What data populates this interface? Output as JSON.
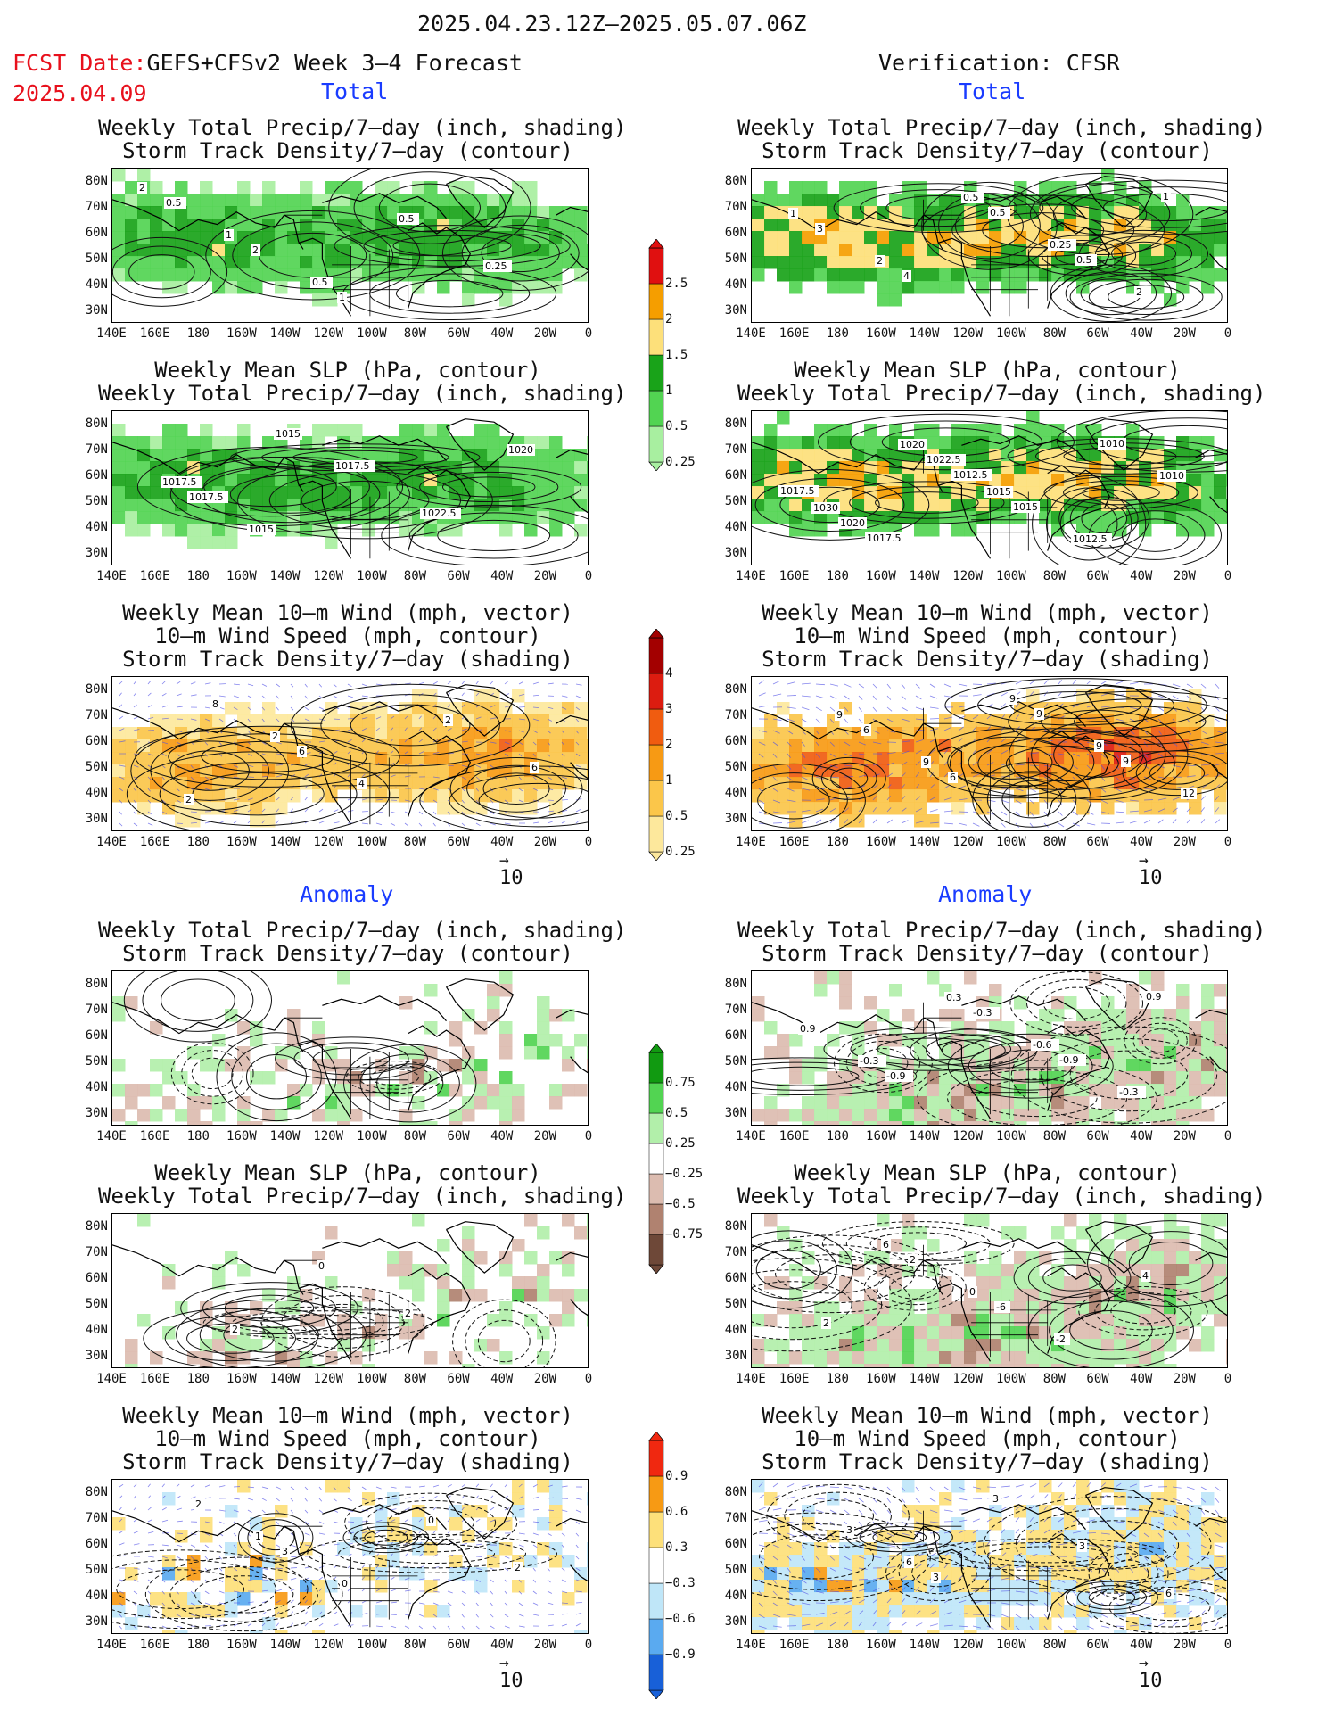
{
  "header": {
    "date_range": "2025.04.23.12Z–2025.05.07.06Z",
    "fcst_label": "FCST Date:",
    "fcst_model": "GEFS+CFSv2 Week 3–4 Forecast",
    "fcst_date": "2025.04.09",
    "verification": "Verification: CFSR"
  },
  "sections": {
    "total": "Total",
    "anomaly": "Anomaly"
  },
  "titles": {
    "precip_storm": [
      "Weekly Total Precip/7–day (inch, shading)",
      "Storm Track Density/7–day (contour)"
    ],
    "slp_precip": [
      "Weekly Mean SLP (hPa, contour)",
      "Weekly Total Precip/7–day (inch, shading)"
    ],
    "wind_storm": [
      "Weekly Mean 10–m Wind (mph, vector)",
      "10–m Wind Speed (mph, contour)",
      "Storm Track Density/7–day (shading)"
    ]
  },
  "lat_labels": [
    "80N",
    "70N",
    "60N",
    "50N",
    "40N",
    "30N"
  ],
  "lon_labels": [
    "140E",
    "160E",
    "180",
    "160W",
    "140W",
    "120W",
    "100W",
    "80W",
    "60W",
    "40W",
    "20W",
    "0"
  ],
  "vector_ref": "10",
  "colorbars": {
    "precip_total": {
      "labels": [
        "2.5",
        "2",
        "1.5",
        "1",
        "0.5",
        "0.25"
      ],
      "colors": [
        "#e01010",
        "#f59e00",
        "#fde07a",
        "#19a319",
        "#52d452",
        "#a8efa0"
      ]
    },
    "storm_total": {
      "labels": [
        "4",
        "3",
        "2",
        "1",
        "0.5",
        "0.25"
      ],
      "colors": [
        "#a30000",
        "#dc1c10",
        "#f05c10",
        "#f79a14",
        "#fbc64a",
        "#fde89c"
      ]
    },
    "precip_anom": {
      "labels": [
        "0.75",
        "0.5",
        "0.25",
        "−0.25",
        "−0.5",
        "−0.75"
      ],
      "colors": [
        "#119a11",
        "#52d452",
        "#b2efaa",
        "#ffffff",
        "#dcbcb0",
        "#b08270",
        "#6e4838"
      ]
    },
    "storm_anom": {
      "labels": [
        "0.9",
        "0.6",
        "0.3",
        "−0.3",
        "−0.6",
        "−0.9"
      ],
      "colors": [
        "#f02810",
        "#f79a14",
        "#fde07a",
        "#ffffff",
        "#bfe6f8",
        "#5aaaf0",
        "#1860d8"
      ]
    }
  },
  "contour_labels": {
    "fcst_precip_storm": [
      "2",
      "1",
      "0.5",
      "0.5",
      "0.25",
      "0.5",
      "2",
      "1"
    ],
    "verif_precip_storm": [
      "1",
      "2",
      "0.5",
      "0.25",
      "2",
      "3",
      "4",
      "0.5",
      "0.5",
      "1"
    ],
    "fcst_slp": [
      "1017.5",
      "1015",
      "1017.5",
      "1022.5",
      "1020",
      "1017.5",
      "1015"
    ],
    "verif_slp": [
      "1030",
      "1020",
      "1015",
      "1012.5",
      "1010",
      "1020",
      "1022.5",
      "1015",
      "1010",
      "1017.5",
      "1017.5",
      "1012.5"
    ],
    "fcst_wind": [
      "2",
      "2",
      "4",
      "2",
      "6",
      "8",
      "6"
    ],
    "verif_wind": [
      "9",
      "9",
      "9",
      "9",
      "12",
      "6",
      "6",
      "9",
      "9"
    ],
    "fcst_anom_storm": [],
    "verif_anom_storm": [
      "-0.3",
      "0.3",
      "-0.6",
      "-0.3",
      "0.9",
      "-0.9",
      "-0.3",
      "-0.9",
      "0.9"
    ],
    "fcst_anom_slp": [
      "2",
      "0",
      "2"
    ],
    "verif_anom_slp": [
      "6",
      "0",
      "-2",
      "4",
      "2",
      "2",
      "-6"
    ],
    "fcst_anom_wind": [
      "1",
      "0",
      "0",
      "2",
      "2",
      "3"
    ],
    "verif_anom_wind": [
      "6",
      "3",
      "3",
      "6",
      "3",
      "3"
    ]
  }
}
